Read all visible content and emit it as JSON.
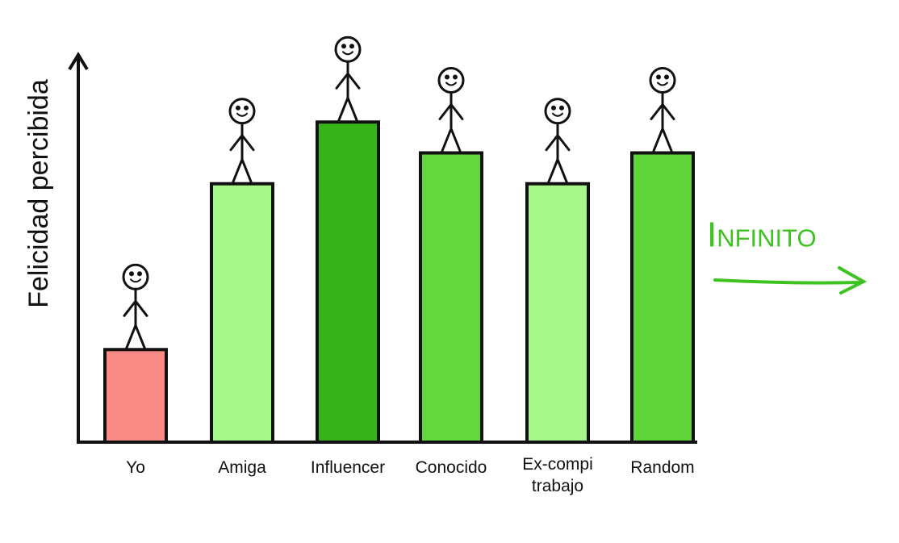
{
  "chart_data": {
    "type": "bar",
    "y_label": "Felicidad percibida",
    "annotation": "Infinito",
    "categories": [
      "Yo",
      "Amiga",
      "Influencer",
      "Conocido",
      "Ex-compi\ntrabajo",
      "Random"
    ],
    "values": [
      24,
      67,
      83,
      75,
      67,
      75
    ],
    "colors": [
      "#f98a85",
      "#a8f78a",
      "#37b219",
      "#63d83c",
      "#a8f78a",
      "#5fd33a"
    ],
    "ylim": [
      0,
      100
    ]
  }
}
